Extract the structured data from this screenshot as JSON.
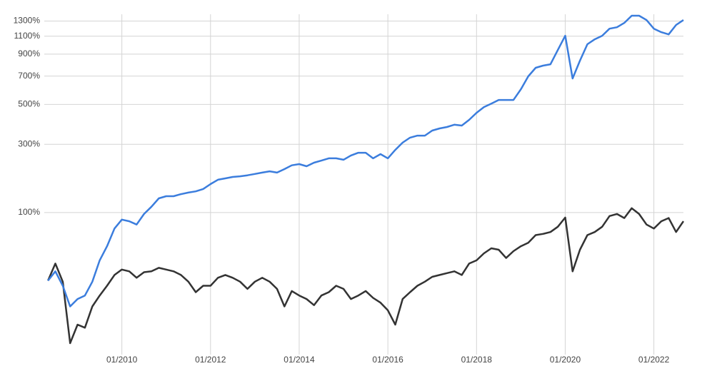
{
  "chart_data": {
    "type": "line",
    "yscale": "log-growth",
    "grid": true,
    "x": [
      "05/2008",
      "07/2008",
      "09/2008",
      "11/2008",
      "01/2009",
      "03/2009",
      "05/2009",
      "07/2009",
      "09/2009",
      "11/2009",
      "01/2010",
      "03/2010",
      "05/2010",
      "07/2010",
      "09/2010",
      "11/2010",
      "01/2011",
      "03/2011",
      "05/2011",
      "07/2011",
      "09/2011",
      "11/2011",
      "01/2012",
      "03/2012",
      "05/2012",
      "07/2012",
      "09/2012",
      "11/2012",
      "01/2013",
      "03/2013",
      "05/2013",
      "07/2013",
      "09/2013",
      "11/2013",
      "01/2014",
      "03/2014",
      "05/2014",
      "07/2014",
      "09/2014",
      "11/2014",
      "01/2015",
      "03/2015",
      "05/2015",
      "07/2015",
      "09/2015",
      "11/2015",
      "01/2016",
      "03/2016",
      "05/2016",
      "07/2016",
      "09/2016",
      "11/2016",
      "01/2017",
      "03/2017",
      "05/2017",
      "07/2017",
      "09/2017",
      "11/2017",
      "01/2018",
      "03/2018",
      "05/2018",
      "07/2018",
      "09/2018",
      "11/2018",
      "01/2019",
      "03/2019",
      "05/2019",
      "07/2019",
      "09/2019",
      "11/2019",
      "01/2020",
      "03/2020",
      "05/2020",
      "07/2020",
      "09/2020",
      "11/2020",
      "01/2021",
      "03/2021",
      "05/2021",
      "07/2021",
      "09/2021",
      "11/2021",
      "01/2022",
      "03/2022",
      "05/2022",
      "07/2022",
      "09/2022"
    ],
    "xlim": [
      "04/2008",
      "09/2022"
    ],
    "xticks": [
      "01/2010",
      "01/2012",
      "01/2014",
      "01/2016",
      "01/2018",
      "01/2020",
      "01/2022"
    ],
    "ylim": [
      -50,
      1400
    ],
    "yticks": [
      {
        "value": 100,
        "label": "100%"
      },
      {
        "value": 300,
        "label": "300%"
      },
      {
        "value": 500,
        "label": "500%"
      },
      {
        "value": 700,
        "label": "700%"
      },
      {
        "value": 900,
        "label": "900%"
      },
      {
        "value": 1100,
        "label": "1100%"
      },
      {
        "value": 1300,
        "label": "1300%"
      }
    ],
    "series": [
      {
        "color": "#3b7ddd",
        "values": [
          0,
          10,
          -5,
          -23,
          -17,
          -14,
          -1,
          23,
          42,
          70,
          86,
          83,
          77,
          97,
          112,
          131,
          136,
          136,
          141,
          145,
          148,
          154,
          167,
          179,
          183,
          187,
          189,
          192,
          196,
          200,
          204,
          200,
          211,
          223,
          227,
          220,
          232,
          239,
          247,
          247,
          242,
          257,
          267,
          267,
          247,
          262,
          247,
          278,
          307,
          328,
          337,
          337,
          360,
          370,
          377,
          388,
          384,
          413,
          451,
          484,
          505,
          528,
          528,
          528,
          600,
          698,
          771,
          790,
          802,
          943,
          1106,
          681,
          836,
          1006,
          1063,
          1106,
          1196,
          1215,
          1274,
          1378,
          1378,
          1314,
          1196,
          1150,
          1123,
          1245,
          1314
        ]
      },
      {
        "color": "#333333",
        "values": [
          0,
          19,
          -1,
          -47,
          -36,
          -38,
          -23,
          -14,
          -5,
          6,
          12,
          10,
          3,
          9,
          10,
          14,
          12,
          10,
          6,
          -1,
          -11,
          -5,
          -5,
          3,
          6,
          3,
          -1,
          -8,
          -1,
          3,
          -1,
          -8,
          -23,
          -10,
          -14,
          -17,
          -22,
          -14,
          -11,
          -5,
          -8,
          -17,
          -14,
          -10,
          -16,
          -20,
          -26,
          -36,
          -17,
          -11,
          -5,
          -1,
          4,
          6,
          8,
          10,
          6,
          19,
          23,
          32,
          39,
          37,
          26,
          35,
          42,
          47,
          59,
          61,
          64,
          73,
          90,
          10,
          37,
          59,
          64,
          73,
          93,
          97,
          89,
          109,
          97,
          77,
          70,
          83,
          89,
          64,
          83
        ]
      }
    ]
  }
}
